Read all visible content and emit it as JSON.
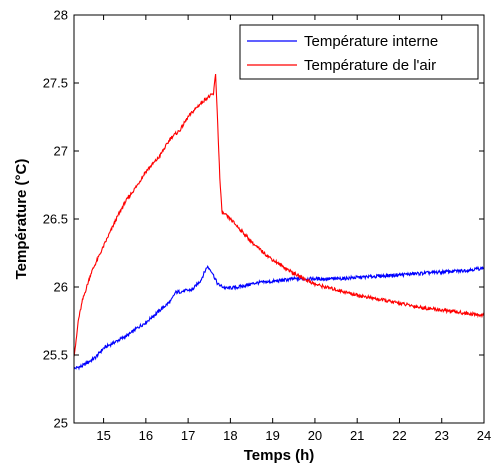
{
  "chart_data": {
    "type": "line",
    "title": "",
    "xlabel": "Temps (h)",
    "ylabel": "Température (°C)",
    "xlim": [
      14.3,
      24
    ],
    "ylim": [
      25,
      28
    ],
    "x_ticks": [
      "15",
      "16",
      "17",
      "18",
      "19",
      "20",
      "21",
      "22",
      "23",
      "24"
    ],
    "y_ticks": [
      "25",
      "25.5",
      "26",
      "26.5",
      "27",
      "27.5",
      "28"
    ],
    "grid": false,
    "legend_position": "top-right",
    "series": [
      {
        "name": "Température interne",
        "color": "#0000ff",
        "x": [
          14.3,
          14.5,
          14.8,
          15.0,
          15.3,
          15.6,
          15.8,
          16.0,
          16.3,
          16.6,
          16.7,
          16.9,
          17.1,
          17.3,
          17.45,
          17.55,
          17.7,
          17.9,
          18.2,
          18.6,
          19.0,
          19.5,
          20.0,
          20.5,
          21.0,
          21.5,
          22.0,
          22.5,
          23.0,
          23.5,
          24.0
        ],
        "y": [
          25.4,
          25.42,
          25.48,
          25.55,
          25.6,
          25.65,
          25.7,
          25.74,
          25.82,
          25.9,
          25.96,
          25.97,
          25.98,
          26.05,
          26.15,
          26.12,
          26.02,
          25.99,
          26.0,
          26.03,
          26.04,
          26.06,
          26.06,
          26.06,
          26.07,
          26.08,
          26.09,
          26.1,
          26.11,
          26.12,
          26.14
        ]
      },
      {
        "name": "Température de l'air",
        "color": "#ff0000",
        "x": [
          14.3,
          14.35,
          14.4,
          14.5,
          14.7,
          15.0,
          15.3,
          15.5,
          15.8,
          16.0,
          16.3,
          16.6,
          16.8,
          17.0,
          17.2,
          17.4,
          17.6,
          17.65,
          17.7,
          17.75,
          17.8,
          18.0,
          18.3,
          18.6,
          19.0,
          19.5,
          20.0,
          20.5,
          21.0,
          21.5,
          22.0,
          22.5,
          23.0,
          23.5,
          24.0
        ],
        "y": [
          25.5,
          25.6,
          25.75,
          25.9,
          26.1,
          26.3,
          26.5,
          26.62,
          26.75,
          26.85,
          26.95,
          27.1,
          27.15,
          27.25,
          27.32,
          27.38,
          27.42,
          27.57,
          27.2,
          26.8,
          26.55,
          26.5,
          26.4,
          26.3,
          26.2,
          26.1,
          26.02,
          25.98,
          25.94,
          25.91,
          25.88,
          25.85,
          25.83,
          25.81,
          25.79
        ]
      }
    ]
  }
}
